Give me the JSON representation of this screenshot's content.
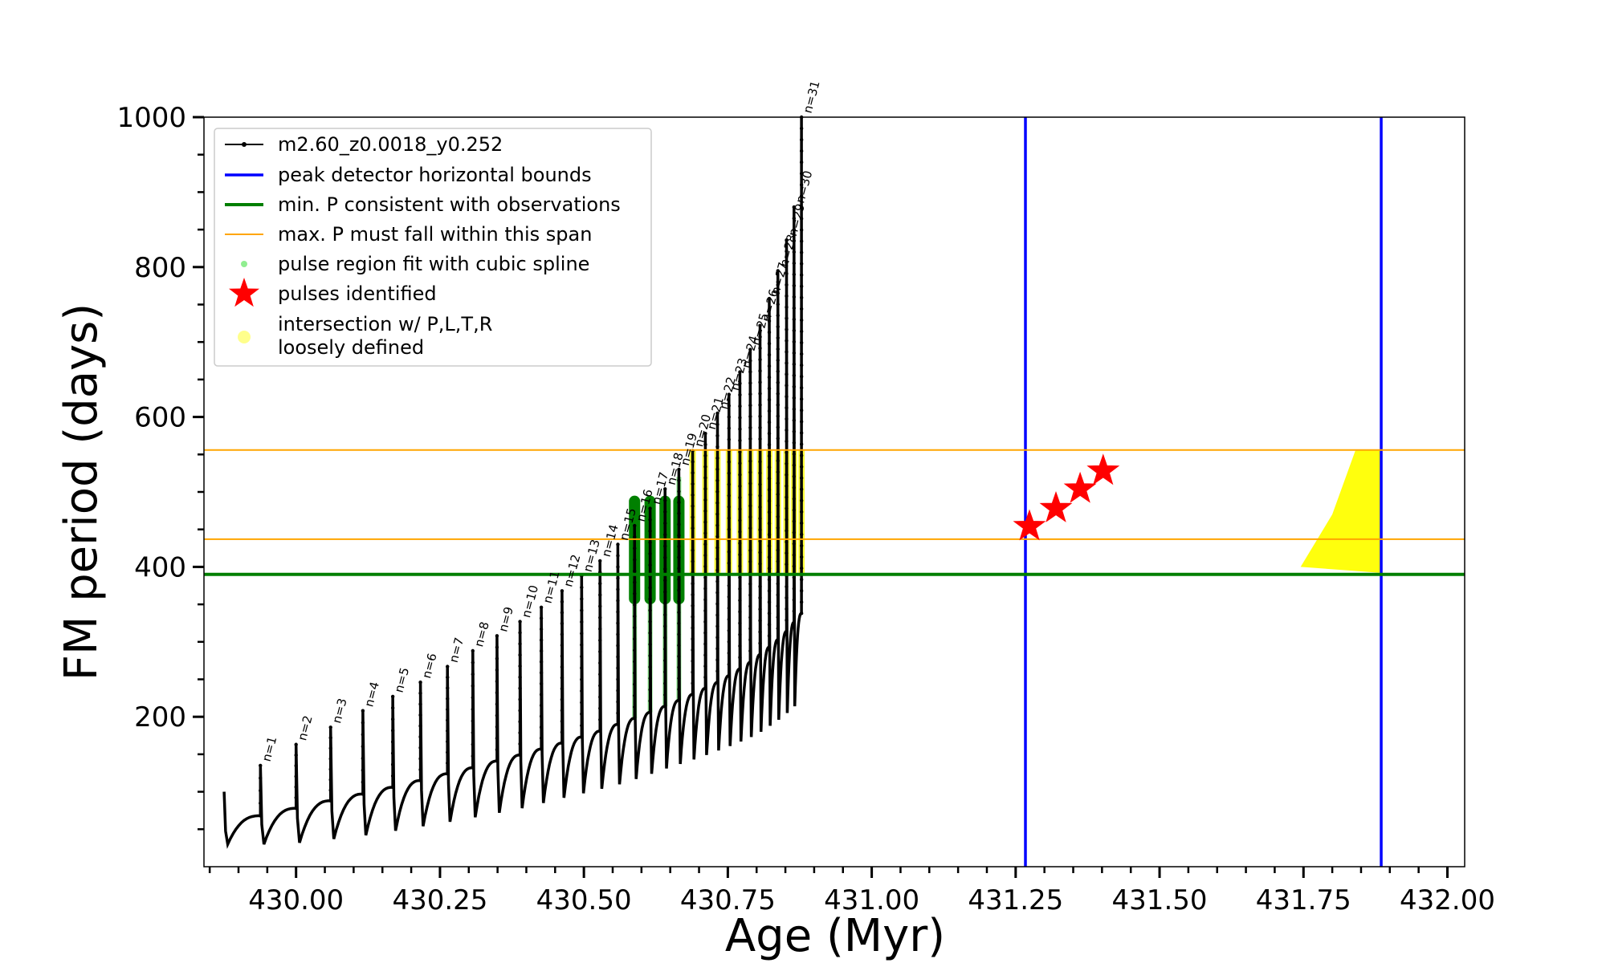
{
  "chart_data": {
    "type": "line",
    "xlabel": "Age (Myr)",
    "ylabel": "FM period (days)",
    "xlim": [
      429.84,
      432.03
    ],
    "ylim": [
      0,
      1000
    ],
    "x_ticks": [
      430.0,
      430.25,
      430.5,
      430.75,
      431.0,
      431.25,
      431.5,
      431.75,
      432.0
    ],
    "x_tick_labels": [
      "430.00",
      "430.25",
      "430.50",
      "430.75",
      "431.00",
      "431.25",
      "431.50",
      "431.75",
      "432.00"
    ],
    "y_ticks": [
      200,
      400,
      600,
      800,
      1000
    ],
    "y_tick_labels": [
      "200",
      "400",
      "600",
      "800",
      "1000"
    ],
    "legend": {
      "placement": "top-left",
      "entries": [
        {
          "label": "m2.60_z0.0018_y0.252",
          "style": "black-line-dots"
        },
        {
          "label": "peak detector horizontal bounds",
          "style": "blue-line"
        },
        {
          "label": "min. P consistent with observations",
          "style": "green-line"
        },
        {
          "label": "max. P must fall within this span",
          "style": "orange-line"
        },
        {
          "label": "pulse region fit with cubic spline",
          "style": "lightgreen-dot"
        },
        {
          "label": "pulses identified",
          "style": "red-star"
        },
        {
          "label": "intersection w/ P,L,T,R",
          "label2": "loosely defined",
          "style": "yellow-dot"
        }
      ]
    },
    "colors": {
      "track": "#000000",
      "bounds": "#0000ff",
      "minP": "#007f00",
      "maxP": "#ffa500",
      "spline": "#90ee90",
      "spline_dark": "#008000",
      "star": "#ff0000",
      "intersection": "#ffff00"
    },
    "series": [
      {
        "name": "m2.60_z0.0018_y0.252",
        "start": {
          "x": 429.875,
          "peak": 100,
          "min": 30
        },
        "pulses": [
          {
            "n": 1,
            "x": 429.938,
            "pre": 68,
            "peak": 135,
            "min": 30
          },
          {
            "n": 2,
            "x": 430.0,
            "pre": 78,
            "peak": 163,
            "min": 32
          },
          {
            "n": 3,
            "x": 430.06,
            "pre": 88,
            "peak": 186,
            "min": 37
          },
          {
            "n": 4,
            "x": 430.116,
            "pre": 97,
            "peak": 208,
            "min": 42
          },
          {
            "n": 5,
            "x": 430.168,
            "pre": 106,
            "peak": 227,
            "min": 48
          },
          {
            "n": 6,
            "x": 430.216,
            "pre": 115,
            "peak": 246,
            "min": 54
          },
          {
            "n": 7,
            "x": 430.263,
            "pre": 124,
            "peak": 267,
            "min": 60
          },
          {
            "n": 8,
            "x": 430.307,
            "pre": 132,
            "peak": 288,
            "min": 66
          },
          {
            "n": 9,
            "x": 430.349,
            "pre": 141,
            "peak": 308,
            "min": 72
          },
          {
            "n": 10,
            "x": 430.389,
            "pre": 149,
            "peak": 327,
            "min": 78
          },
          {
            "n": 11,
            "x": 430.426,
            "pre": 157,
            "peak": 346,
            "min": 85
          },
          {
            "n": 12,
            "x": 430.462,
            "pre": 165,
            "peak": 368,
            "min": 92
          },
          {
            "n": 13,
            "x": 430.496,
            "pre": 173,
            "peak": 388,
            "min": 98
          },
          {
            "n": 14,
            "x": 430.528,
            "pre": 181,
            "peak": 408,
            "min": 104
          },
          {
            "n": 15,
            "x": 430.559,
            "pre": 190,
            "peak": 430,
            "min": 110
          },
          {
            "n": 16,
            "x": 430.588,
            "pre": 198,
            "peak": 455,
            "min": 117
          },
          {
            "n": 17,
            "x": 430.615,
            "pre": 206,
            "peak": 478,
            "min": 124
          },
          {
            "n": 18,
            "x": 430.641,
            "pre": 214,
            "peak": 504,
            "min": 131
          },
          {
            "n": 19,
            "x": 430.665,
            "pre": 222,
            "peak": 530,
            "min": 137
          },
          {
            "n": 20,
            "x": 430.689,
            "pre": 230,
            "peak": 555,
            "min": 143
          },
          {
            "n": 21,
            "x": 430.711,
            "pre": 238,
            "peak": 578,
            "min": 149
          },
          {
            "n": 22,
            "x": 430.732,
            "pre": 246,
            "peak": 605,
            "min": 155
          },
          {
            "n": 23,
            "x": 430.752,
            "pre": 255,
            "peak": 630,
            "min": 161
          },
          {
            "n": 24,
            "x": 430.771,
            "pre": 264,
            "peak": 660,
            "min": 167
          },
          {
            "n": 25,
            "x": 430.789,
            "pre": 273,
            "peak": 690,
            "min": 173
          },
          {
            "n": 26,
            "x": 430.806,
            "pre": 283,
            "peak": 722,
            "min": 180
          },
          {
            "n": 27,
            "x": 430.822,
            "pre": 293,
            "peak": 758,
            "min": 188
          },
          {
            "n": 28,
            "x": 430.837,
            "pre": 303,
            "peak": 795,
            "min": 196
          },
          {
            "n": 29,
            "x": 430.852,
            "pre": 314,
            "peak": 836,
            "min": 205
          },
          {
            "n": 30,
            "x": 430.865,
            "pre": 326,
            "peak": 880,
            "min": 214
          },
          {
            "n": 31,
            "x": 430.878,
            "pre": 338,
            "peak": 1000,
            "min": 223
          }
        ]
      }
    ],
    "bounds_x": [
      431.267,
      431.885
    ],
    "minP": 390,
    "maxP_span": [
      437,
      556
    ],
    "pulses_identified": [
      {
        "n": 16,
        "x": 431.274,
        "y": 454
      },
      {
        "n": 17,
        "x": 431.32,
        "y": 478
      },
      {
        "n": 18,
        "x": 431.362,
        "y": 504
      },
      {
        "n": 19,
        "x": 431.402,
        "y": 528
      }
    ]
  }
}
